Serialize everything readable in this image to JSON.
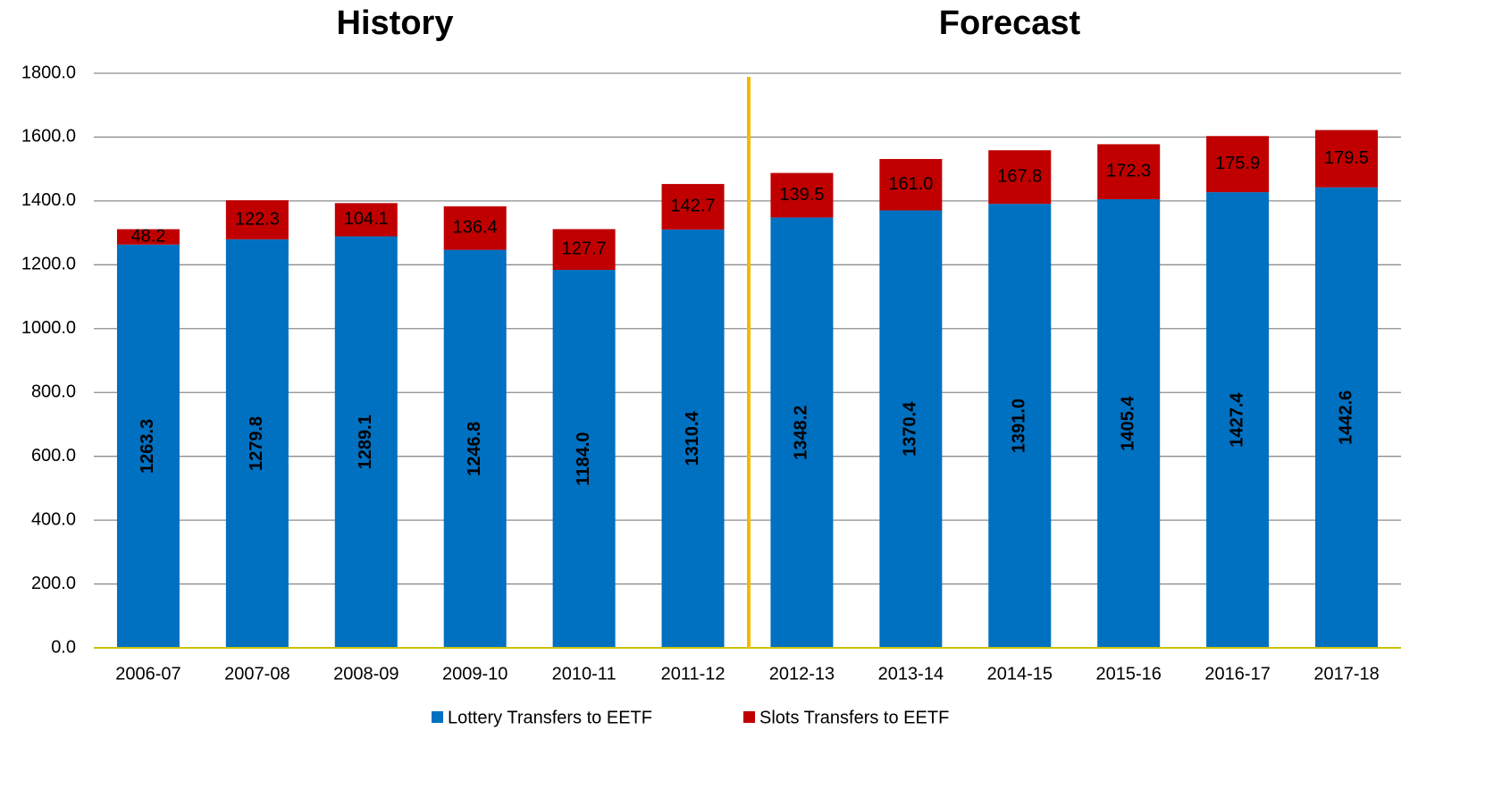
{
  "chart_data": {
    "type": "stacked_bar",
    "annotations": [
      "History",
      "Forecast"
    ],
    "categories": [
      "2006-07",
      "2007-08",
      "2008-09",
      "2009-10",
      "2010-11",
      "2011-12",
      "2012-13",
      "2013-14",
      "2014-15",
      "2015-16",
      "2016-17",
      "2017-18"
    ],
    "series": [
      {
        "name": "Lottery Transfers to EETF",
        "color": "#0070c0",
        "values": [
          1263.3,
          1279.8,
          1289.1,
          1246.8,
          1184.0,
          1310.4,
          1348.2,
          1370.4,
          1391.0,
          1405.4,
          1427.4,
          1442.6
        ],
        "value_labels": [
          "1263.3",
          "1279.8",
          "1289.1",
          "1246.8",
          "1184.0",
          "1310.4",
          "1348.2",
          "1370.4",
          "1391.0",
          "1405.4",
          "1427.4",
          "1442.6"
        ]
      },
      {
        "name": "Slots Transfers to EETF",
        "color": "#c00000",
        "values": [
          48.2,
          122.3,
          104.1,
          136.4,
          127.7,
          142.7,
          139.5,
          161.0,
          167.8,
          172.3,
          175.9,
          179.5
        ],
        "value_labels": [
          "48.2",
          "122.3",
          "104.1",
          "136.4",
          "127.7",
          "142.7",
          "139.5",
          "161.0",
          "167.8",
          "172.3",
          "175.9",
          "179.5"
        ]
      }
    ],
    "ylim": [
      0,
      1800
    ],
    "yticks": [
      {
        "value": 0,
        "label": "0.0"
      },
      {
        "value": 200,
        "label": "200.0"
      },
      {
        "value": 400,
        "label": "400.0"
      },
      {
        "value": 600,
        "label": "600.0"
      },
      {
        "value": 800,
        "label": "800.0"
      },
      {
        "value": 1000,
        "label": "1000.0"
      },
      {
        "value": 1200,
        "label": "1200.0"
      },
      {
        "value": 1400,
        "label": "1400.0"
      },
      {
        "value": 1600,
        "label": "1600.0"
      },
      {
        "value": 1800,
        "label": "1800.0"
      }
    ],
    "grid": true,
    "legend": "bottom"
  }
}
